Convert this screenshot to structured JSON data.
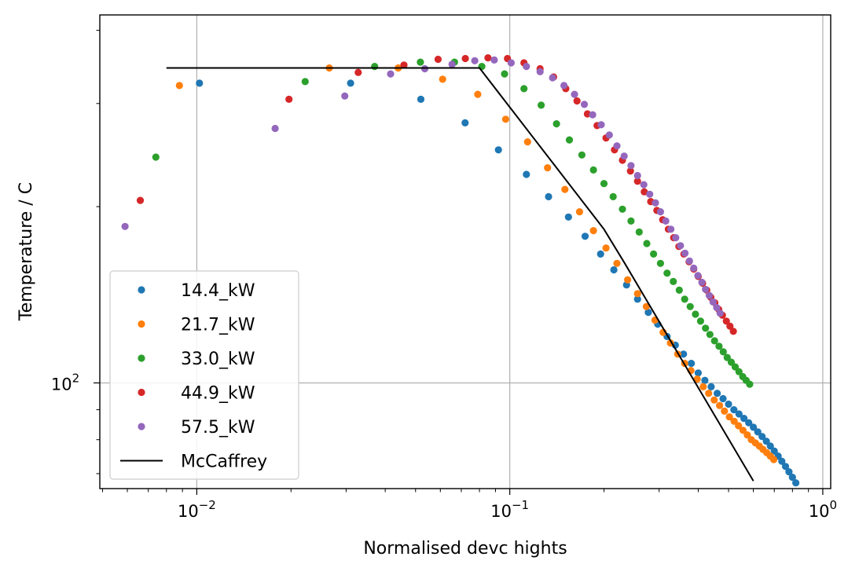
{
  "chart_data": {
    "type": "scatter",
    "xlabel": "Normalised devc hights",
    "ylabel": "Temperature / C",
    "xscale": "log",
    "yscale": "log",
    "xlim": [
      0.0049,
      1.06
    ],
    "ylim": [
      66,
      425
    ],
    "grid": true,
    "legend_position": "lower-left",
    "x_ticks": [
      {
        "value": 0.01,
        "base": "10",
        "exp": "−2"
      },
      {
        "value": 0.1,
        "base": "10",
        "exp": "−1"
      },
      {
        "value": 1,
        "base": "10",
        "exp": "0"
      }
    ],
    "y_ticks": [
      {
        "value": 100,
        "base": "10",
        "exp": "2"
      }
    ],
    "series": [
      {
        "name": "14.4_kW",
        "color": "#1f77b4",
        "kind": "points",
        "segments": [
          {
            "x_start": 0.0102,
            "x_end": 0.82,
            "count": 2,
            "y": [
              325,
              67
            ]
          }
        ],
        "explicit": [
          [
            0.0102,
            325
          ],
          [
            0.031,
            325
          ],
          [
            0.052,
            305
          ],
          [
            0.072,
            278
          ],
          [
            0.092,
            250
          ],
          [
            0.113,
            227
          ],
          [
            0.133,
            208
          ],
          [
            0.154,
            192
          ],
          [
            0.174,
            178
          ],
          [
            0.195,
            166
          ],
          [
            0.215,
            156
          ],
          [
            0.236,
            147
          ],
          [
            0.256,
            139
          ],
          [
            0.277,
            132
          ],
          [
            0.297,
            126
          ],
          [
            0.318,
            120
          ],
          [
            0.338,
            116
          ],
          [
            0.359,
            112
          ],
          [
            0.38,
            108
          ],
          [
            0.4,
            104
          ],
          [
            0.42,
            101
          ],
          [
            0.44,
            98.5
          ],
          [
            0.46,
            96
          ],
          [
            0.48,
            94
          ],
          [
            0.5,
            92
          ],
          [
            0.52,
            90
          ],
          [
            0.54,
            88.5
          ],
          [
            0.56,
            87
          ],
          [
            0.58,
            85.5
          ],
          [
            0.6,
            84
          ],
          [
            0.62,
            82.5
          ],
          [
            0.64,
            81
          ],
          [
            0.66,
            79.5
          ],
          [
            0.68,
            78
          ],
          [
            0.7,
            76.5
          ],
          [
            0.72,
            75
          ],
          [
            0.74,
            73.5
          ],
          [
            0.76,
            72
          ],
          [
            0.78,
            70.5
          ],
          [
            0.8,
            69
          ],
          [
            0.82,
            67.5
          ]
        ]
      },
      {
        "name": "21.7_kW",
        "color": "#ff7f0e",
        "kind": "points",
        "explicit": [
          [
            0.0088,
            322
          ],
          [
            0.0265,
            345
          ],
          [
            0.044,
            345
          ],
          [
            0.061,
            330
          ],
          [
            0.079,
            311
          ],
          [
            0.097,
            282
          ],
          [
            0.114,
            258
          ],
          [
            0.132,
            233
          ],
          [
            0.15,
            214
          ],
          [
            0.167,
            196
          ],
          [
            0.185,
            182
          ],
          [
            0.203,
            170
          ],
          [
            0.22,
            160
          ],
          [
            0.238,
            150
          ],
          [
            0.256,
            142
          ],
          [
            0.273,
            135
          ],
          [
            0.291,
            128
          ],
          [
            0.309,
            122
          ],
          [
            0.326,
            117
          ],
          [
            0.344,
            112
          ],
          [
            0.362,
            108
          ],
          [
            0.379,
            105
          ],
          [
            0.397,
            101.5
          ],
          [
            0.415,
            98.5
          ],
          [
            0.432,
            96
          ],
          [
            0.45,
            93.5
          ],
          [
            0.468,
            91.5
          ],
          [
            0.485,
            89.5
          ],
          [
            0.503,
            87.5
          ],
          [
            0.521,
            86
          ],
          [
            0.538,
            84.5
          ],
          [
            0.556,
            83
          ],
          [
            0.574,
            81.5
          ],
          [
            0.591,
            80
          ],
          [
            0.609,
            79
          ],
          [
            0.627,
            78
          ],
          [
            0.644,
            77
          ],
          [
            0.662,
            76
          ],
          [
            0.68,
            75
          ],
          [
            0.697,
            74
          ]
        ]
      },
      {
        "name": "33.0_kW",
        "color": "#2ca02c",
        "kind": "points",
        "explicit": [
          [
            0.0074,
            243
          ],
          [
            0.0222,
            327
          ],
          [
            0.037,
            347
          ],
          [
            0.0518,
            353
          ],
          [
            0.0666,
            353
          ],
          [
            0.0814,
            347
          ],
          [
            0.0962,
            337
          ],
          [
            0.111,
            318
          ],
          [
            0.126,
            298
          ],
          [
            0.141,
            277
          ],
          [
            0.155,
            260
          ],
          [
            0.17,
            245
          ],
          [
            0.185,
            231
          ],
          [
            0.2,
            219
          ],
          [
            0.214,
            208
          ],
          [
            0.229,
            198
          ],
          [
            0.244,
            189
          ],
          [
            0.259,
            181
          ],
          [
            0.274,
            173
          ],
          [
            0.288,
            166
          ],
          [
            0.303,
            160
          ],
          [
            0.318,
            154
          ],
          [
            0.333,
            149
          ],
          [
            0.348,
            144
          ],
          [
            0.362,
            139
          ],
          [
            0.377,
            135
          ],
          [
            0.392,
            131
          ],
          [
            0.407,
            127.5
          ],
          [
            0.422,
            124
          ],
          [
            0.436,
            121
          ],
          [
            0.451,
            118
          ],
          [
            0.466,
            115.5
          ],
          [
            0.481,
            113
          ],
          [
            0.495,
            110.5
          ],
          [
            0.51,
            108.5
          ],
          [
            0.525,
            106.5
          ],
          [
            0.54,
            104.5
          ],
          [
            0.555,
            102.5
          ],
          [
            0.569,
            101
          ],
          [
            0.584,
            99.5
          ]
        ]
      },
      {
        "name": "44.9_kW",
        "color": "#d62728",
        "kind": "points",
        "explicit": [
          [
            0.0066,
            205
          ],
          [
            0.0197,
            305
          ],
          [
            0.0328,
            339
          ],
          [
            0.0459,
            349
          ],
          [
            0.059,
            357
          ],
          [
            0.0721,
            358
          ],
          [
            0.0852,
            359
          ],
          [
            0.0983,
            358
          ],
          [
            0.111,
            352
          ],
          [
            0.125,
            344
          ],
          [
            0.138,
            333
          ],
          [
            0.151,
            318
          ],
          [
            0.164,
            303
          ],
          [
            0.177,
            288
          ],
          [
            0.19,
            275
          ],
          [
            0.203,
            262
          ],
          [
            0.216,
            250
          ],
          [
            0.229,
            240
          ],
          [
            0.243,
            230
          ],
          [
            0.256,
            221
          ],
          [
            0.269,
            212
          ],
          [
            0.282,
            204
          ],
          [
            0.295,
            197
          ],
          [
            0.308,
            190
          ],
          [
            0.321,
            183
          ],
          [
            0.334,
            177
          ],
          [
            0.347,
            171
          ],
          [
            0.36,
            166
          ],
          [
            0.374,
            161
          ],
          [
            0.387,
            156.5
          ],
          [
            0.4,
            152
          ],
          [
            0.413,
            148
          ],
          [
            0.426,
            144
          ],
          [
            0.439,
            140
          ],
          [
            0.452,
            137
          ],
          [
            0.465,
            133.5
          ],
          [
            0.478,
            130.5
          ],
          [
            0.492,
            127.5
          ],
          [
            0.505,
            125
          ],
          [
            0.518,
            122.5
          ]
        ]
      },
      {
        "name": "57.5_kW",
        "color": "#9467bd",
        "kind": "points",
        "explicit": [
          [
            0.0059,
            185
          ],
          [
            0.0178,
            272
          ],
          [
            0.0297,
            309
          ],
          [
            0.0416,
            337
          ],
          [
            0.0535,
            344
          ],
          [
            0.0654,
            350
          ],
          [
            0.0773,
            355
          ],
          [
            0.0892,
            356
          ],
          [
            0.101,
            352
          ],
          [
            0.113,
            347
          ],
          [
            0.125,
            340
          ],
          [
            0.137,
            332
          ],
          [
            0.149,
            322
          ],
          [
            0.161,
            311
          ],
          [
            0.173,
            299
          ],
          [
            0.184,
            287
          ],
          [
            0.196,
            276
          ],
          [
            0.208,
            265
          ],
          [
            0.22,
            254
          ],
          [
            0.232,
            244
          ],
          [
            0.244,
            235
          ],
          [
            0.256,
            226
          ],
          [
            0.268,
            218
          ],
          [
            0.28,
            210
          ],
          [
            0.292,
            203
          ],
          [
            0.303,
            196
          ],
          [
            0.315,
            189
          ],
          [
            0.327,
            183
          ],
          [
            0.339,
            177
          ],
          [
            0.351,
            171.5
          ],
          [
            0.363,
            166.5
          ],
          [
            0.375,
            161.5
          ],
          [
            0.387,
            157
          ],
          [
            0.399,
            152.5
          ],
          [
            0.411,
            148.5
          ],
          [
            0.422,
            144.5
          ],
          [
            0.434,
            141
          ],
          [
            0.446,
            137.5
          ],
          [
            0.458,
            134.5
          ],
          [
            0.47,
            131.5
          ]
        ]
      },
      {
        "name": "McCaffrey",
        "color": "#000000",
        "kind": "line",
        "points": [
          [
            0.008,
            345
          ],
          [
            0.08,
            345
          ],
          [
            0.2,
            183
          ],
          [
            0.233,
            160
          ],
          [
            0.6,
            68
          ]
        ]
      }
    ]
  }
}
